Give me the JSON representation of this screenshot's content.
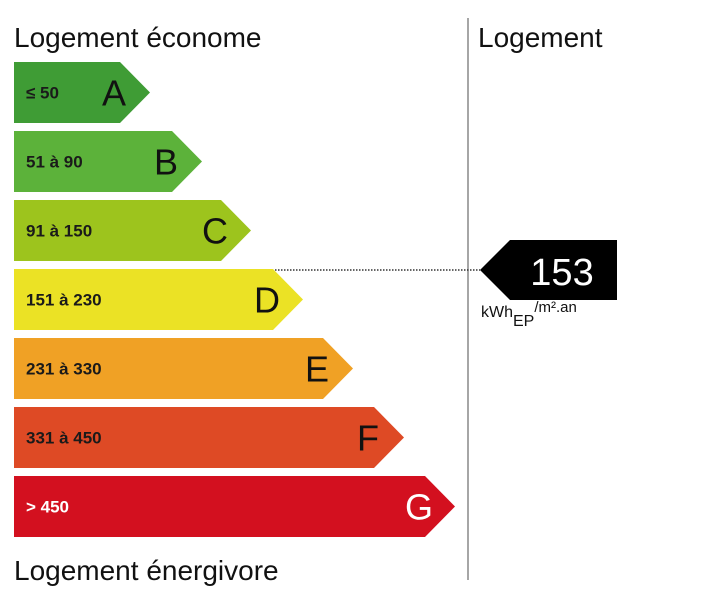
{
  "top_label": "Logement économe",
  "bottom_label": "Logement énergivore",
  "column_header": "Logement",
  "classes": [
    {
      "range": "≤ 50",
      "letter": "A",
      "color": "#3f9c35",
      "text_color": "#1a1a1a"
    },
    {
      "range": "51 à 90",
      "letter": "B",
      "color": "#5cb23a",
      "text_color": "#1a1a1a"
    },
    {
      "range": "91 à 150",
      "letter": "C",
      "color": "#9dc41d",
      "text_color": "#1a1a1a"
    },
    {
      "range": "151 à 230",
      "letter": "D",
      "color": "#ebe225",
      "text_color": "#1a1a1a"
    },
    {
      "range": "231 à 330",
      "letter": "E",
      "color": "#f0a125",
      "text_color": "#1a1a1a"
    },
    {
      "range": "331 à 450",
      "letter": "F",
      "color": "#de4a25",
      "text_color": "#1a1a1a"
    },
    {
      "range": "> 450",
      "letter": "G",
      "color": "#d3101f",
      "text_color": "#ffffff"
    }
  ],
  "indicator": {
    "value": "153",
    "unit": "kWh",
    "unit_sub": "EP",
    "unit_sup": "/m².an"
  }
}
